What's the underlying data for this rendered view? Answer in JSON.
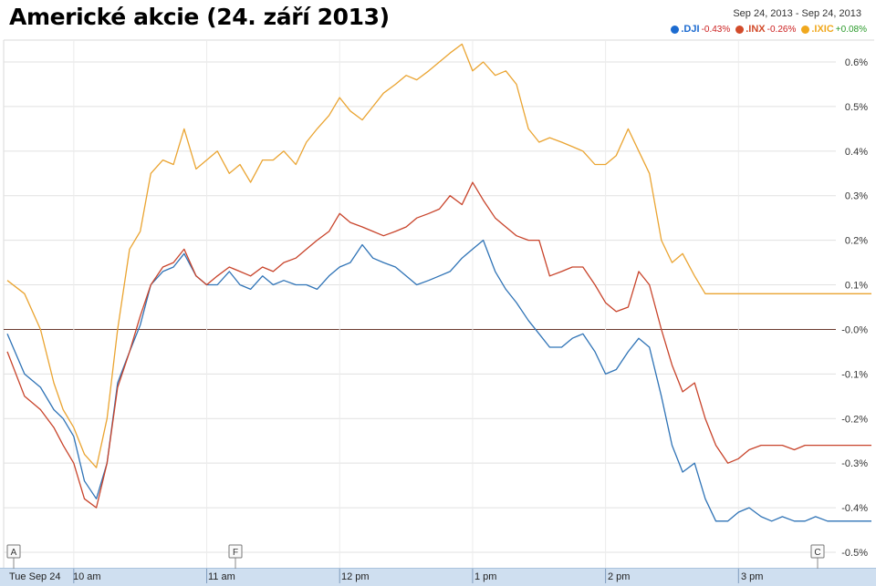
{
  "header": {
    "title": "Americké akcie (24. září 2013)",
    "date_range": "Sep 24, 2013  -  Sep 24, 2013"
  },
  "legend": [
    {
      "symbol": ".DJI",
      "change": "-0.43%",
      "color": "#1c6bd0",
      "change_color": "#cc2020"
    },
    {
      "symbol": ".INX",
      "change": "-0.26%",
      "color": "#d24b2a",
      "change_color": "#cc2020"
    },
    {
      "symbol": ".IXIC",
      "change": "+0.08%",
      "color": "#f0a81e",
      "change_color": "#2a9a2a"
    }
  ],
  "flags": [
    "A",
    "F",
    "C"
  ],
  "chart_data": {
    "type": "line",
    "x_tick_labels": [
      "Tue Sep 24",
      "10 am",
      "11 am",
      "12 pm",
      "1 pm",
      "2 pm",
      "3 pm"
    ],
    "y_tick_labels": [
      "0.6%",
      "0.5%",
      "0.4%",
      "0.3%",
      "0.2%",
      "0.1%",
      "-0.0%",
      "-0.1%",
      "-0.2%",
      "-0.3%",
      "-0.4%",
      "-0.5%"
    ],
    "ylim": [
      -0.5,
      0.6
    ],
    "x_unit": "hours since midnight (ET)",
    "x": [
      9.5,
      9.63,
      9.75,
      9.85,
      9.92,
      10.0,
      10.08,
      10.17,
      10.25,
      10.33,
      10.42,
      10.5,
      10.58,
      10.67,
      10.75,
      10.83,
      10.92,
      11.0,
      11.08,
      11.17,
      11.25,
      11.33,
      11.42,
      11.5,
      11.58,
      11.67,
      11.75,
      11.83,
      11.92,
      12.0,
      12.08,
      12.17,
      12.25,
      12.33,
      12.42,
      12.5,
      12.58,
      12.67,
      12.75,
      12.83,
      12.92,
      13.0,
      13.08,
      13.17,
      13.25,
      13.33,
      13.42,
      13.5,
      13.58,
      13.67,
      13.75,
      13.83,
      13.92,
      14.0,
      14.08,
      14.17,
      14.25,
      14.33,
      14.42,
      14.5,
      14.58,
      14.67,
      14.75,
      14.83,
      14.92,
      15.0,
      15.08,
      15.17,
      15.25,
      15.33,
      15.42,
      15.5,
      15.58,
      15.67,
      15.75,
      15.83,
      15.92,
      16.0
    ],
    "series": [
      {
        "name": ".DJI",
        "color": "#2f73b6",
        "values": [
          -0.01,
          -0.1,
          -0.13,
          -0.18,
          -0.2,
          -0.24,
          -0.34,
          -0.38,
          -0.3,
          -0.12,
          -0.05,
          0.01,
          0.1,
          0.13,
          0.14,
          0.17,
          0.12,
          0.1,
          0.1,
          0.13,
          0.1,
          0.09,
          0.12,
          0.1,
          0.11,
          0.1,
          0.1,
          0.09,
          0.12,
          0.14,
          0.15,
          0.19,
          0.16,
          0.15,
          0.14,
          0.12,
          0.1,
          0.11,
          0.12,
          0.13,
          0.16,
          0.18,
          0.2,
          0.13,
          0.09,
          0.06,
          0.02,
          -0.01,
          -0.04,
          -0.04,
          -0.02,
          -0.01,
          -0.05,
          -0.1,
          -0.09,
          -0.05,
          -0.02,
          -0.04,
          -0.15,
          -0.26,
          -0.32,
          -0.3,
          -0.38,
          -0.43,
          -0.43,
          -0.41,
          -0.4,
          -0.42,
          -0.43,
          -0.42,
          -0.43,
          -0.43,
          -0.42,
          -0.43,
          -0.43,
          -0.43,
          -0.43,
          -0.43
        ]
      },
      {
        "name": ".INX",
        "color": "#c8432a",
        "values": [
          -0.05,
          -0.15,
          -0.18,
          -0.22,
          -0.26,
          -0.3,
          -0.38,
          -0.4,
          -0.3,
          -0.13,
          -0.05,
          0.03,
          0.1,
          0.14,
          0.15,
          0.18,
          0.12,
          0.1,
          0.12,
          0.14,
          0.13,
          0.12,
          0.14,
          0.13,
          0.15,
          0.16,
          0.18,
          0.2,
          0.22,
          0.26,
          0.24,
          0.23,
          0.22,
          0.21,
          0.22,
          0.23,
          0.25,
          0.26,
          0.27,
          0.3,
          0.28,
          0.33,
          0.29,
          0.25,
          0.23,
          0.21,
          0.2,
          0.2,
          0.12,
          0.13,
          0.14,
          0.14,
          0.1,
          0.06,
          0.04,
          0.05,
          0.13,
          0.1,
          0.0,
          -0.08,
          -0.14,
          -0.12,
          -0.2,
          -0.26,
          -0.3,
          -0.29,
          -0.27,
          -0.26,
          -0.26,
          -0.26,
          -0.27,
          -0.26,
          -0.26,
          -0.26,
          -0.26,
          -0.26,
          -0.26,
          -0.26
        ]
      },
      {
        "name": ".IXIC",
        "color": "#eaa431",
        "values": [
          0.11,
          0.08,
          0.0,
          -0.12,
          -0.18,
          -0.22,
          -0.28,
          -0.31,
          -0.2,
          0.0,
          0.18,
          0.22,
          0.35,
          0.38,
          0.37,
          0.45,
          0.36,
          0.38,
          0.4,
          0.35,
          0.37,
          0.33,
          0.38,
          0.38,
          0.4,
          0.37,
          0.42,
          0.45,
          0.48,
          0.52,
          0.49,
          0.47,
          0.5,
          0.53,
          0.55,
          0.57,
          0.56,
          0.58,
          0.6,
          0.62,
          0.64,
          0.58,
          0.6,
          0.57,
          0.58,
          0.55,
          0.45,
          0.42,
          0.43,
          0.42,
          0.41,
          0.4,
          0.37,
          0.37,
          0.39,
          0.45,
          0.4,
          0.35,
          0.2,
          0.15,
          0.17,
          0.12,
          0.08,
          0.08,
          0.08,
          0.08,
          0.08,
          0.08,
          0.08,
          0.08,
          0.08,
          0.08,
          0.08,
          0.08,
          0.08,
          0.08,
          0.08,
          0.08
        ]
      }
    ],
    "grid": true
  }
}
